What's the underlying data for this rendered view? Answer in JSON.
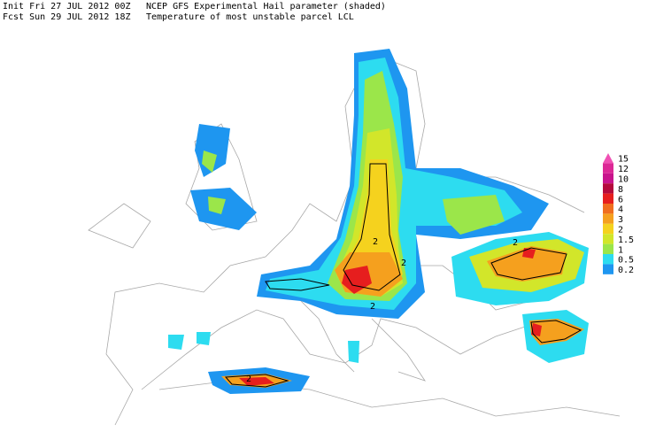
{
  "header": {
    "init": "Init  Fri 27 JUL 2012 00Z",
    "fcst": "Fcst Sun 29 JUL 2012 18Z",
    "title": "NCEP GFS Experimental Hail parameter (shaded)",
    "subtitle": "Temperature of most unstable parcel LCL"
  },
  "map": {
    "contour_labels": [
      "2",
      "2",
      "2",
      "2",
      "2"
    ]
  },
  "legend": {
    "levels": [
      {
        "label": "15",
        "color": "#f050b4"
      },
      {
        "label": "12",
        "color": "#dc2896"
      },
      {
        "label": "10",
        "color": "#c8148c"
      },
      {
        "label": "8",
        "color": "#b40a3c"
      },
      {
        "label": "6",
        "color": "#e61e1e"
      },
      {
        "label": "4",
        "color": "#f06e1e"
      },
      {
        "label": "3",
        "color": "#f5a01e"
      },
      {
        "label": "2",
        "color": "#f5d21e"
      },
      {
        "label": "1.5",
        "color": "#d2e62a"
      },
      {
        "label": "1",
        "color": "#9be64a"
      },
      {
        "label": "0.5",
        "color": "#2ddcf0"
      },
      {
        "label": "0.2",
        "color": "#1e96f0"
      }
    ]
  }
}
